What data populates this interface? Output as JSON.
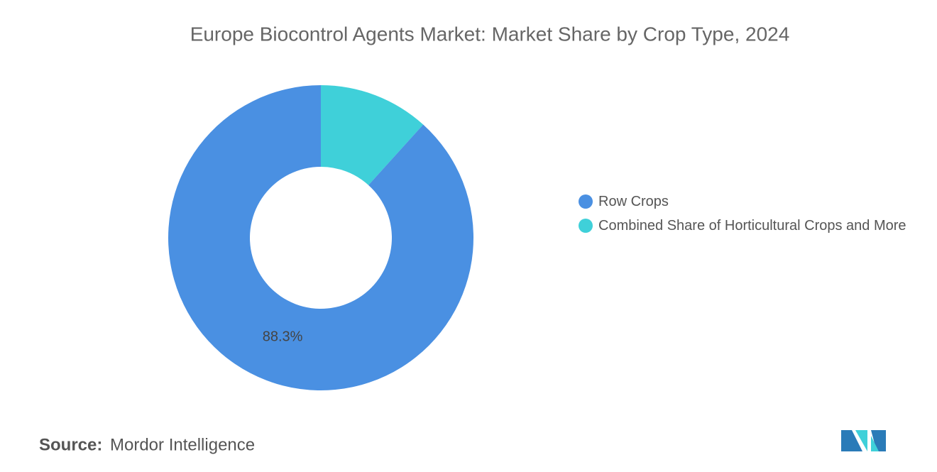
{
  "chart_data": {
    "type": "donut",
    "title": "Europe Biocontrol Agents Market: Market Share by Crop Type, 2024",
    "categories": [
      "Row Crops",
      "Combined Share of Horticultural Crops and More"
    ],
    "values": [
      88.3,
      11.7
    ],
    "value_labels": [
      "88.3%",
      null
    ],
    "colors": [
      "#4a90e2",
      "#3fd0d9"
    ],
    "legend": "right"
  },
  "source_label": "Source:",
  "source": "Mordor Intelligence"
}
